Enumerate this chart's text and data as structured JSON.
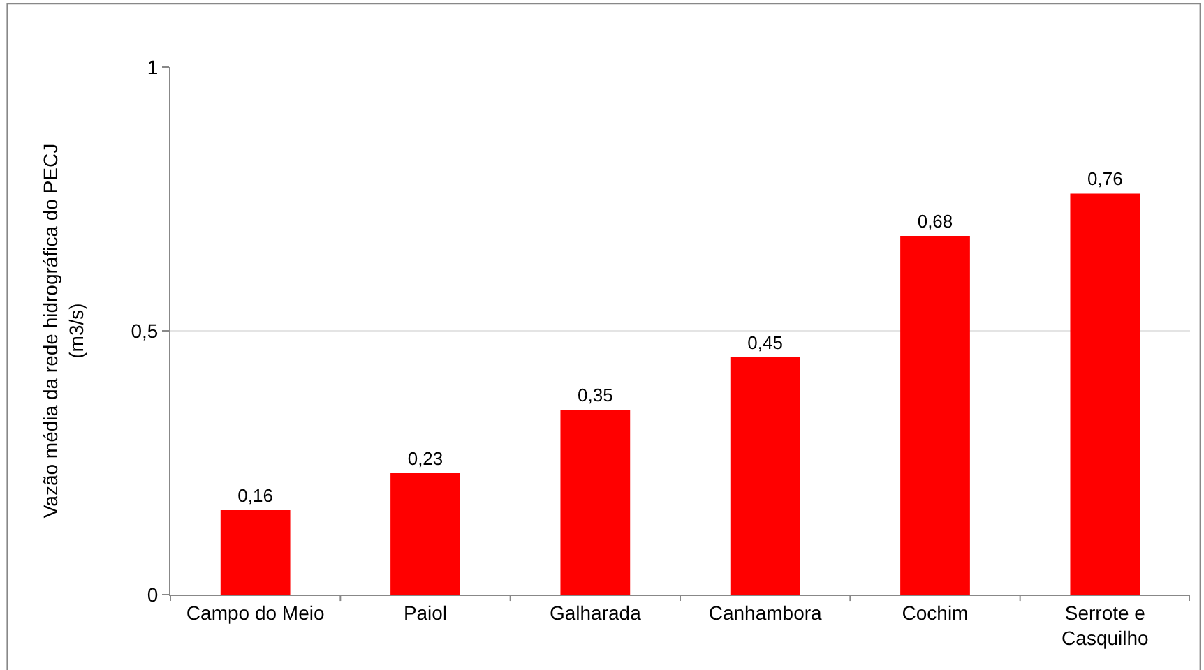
{
  "chart_data": {
    "type": "bar",
    "ylabel": "Vazão média da rede hidrográfica do PECJ (m3/s)",
    "categories": [
      "Campo do Meio",
      "Paiol",
      "Galharada",
      "Canhambora",
      "Cochim",
      "Serrote e Casquilho"
    ],
    "values": [
      0.16,
      0.23,
      0.35,
      0.45,
      0.68,
      0.76
    ],
    "value_labels": [
      "0,16",
      "0,23",
      "0,35",
      "0,45",
      "0,68",
      "0,76"
    ],
    "color": "#ff0000",
    "ylim": [
      0,
      1
    ],
    "yticks": [
      0,
      {
        "value": 0.5,
        "label": "0,5"
      },
      1
    ],
    "grid": "y",
    "legend": false
  }
}
